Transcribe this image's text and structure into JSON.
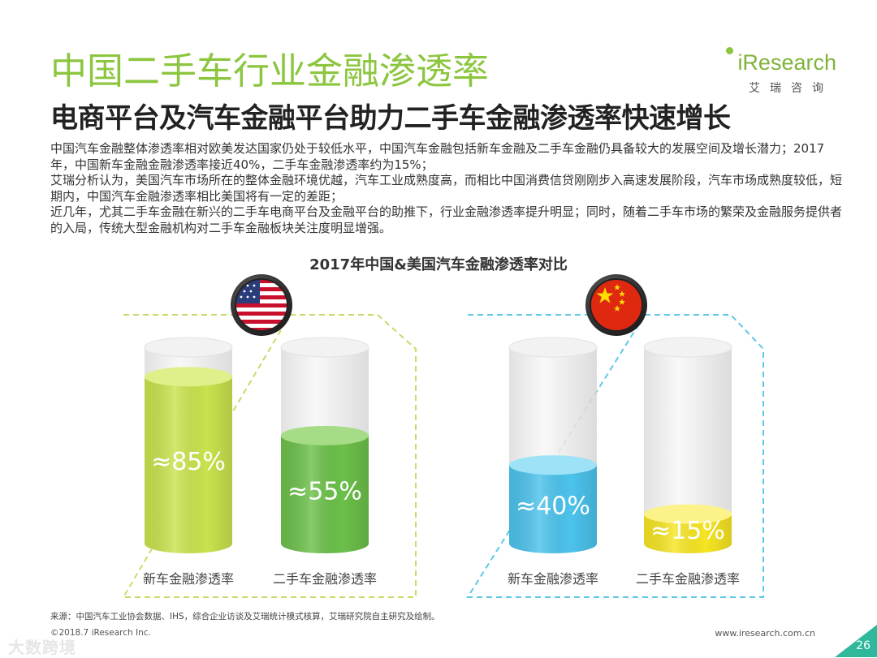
{
  "header": {
    "title": "中国二手车行业金融渗透率",
    "subtitle": "电商平台及汽车金融平台助力二手车金融渗透率快速增长"
  },
  "logo": {
    "name": "iResearch",
    "tagline": "艾瑞咨询"
  },
  "intro": [
    "中国汽车金融整体渗透率相对欧美发达国家仍处于较低水平，中国汽车金融包括新车金融及二手车金融仍具备较大的发展空间及增长潜力；2017年，中国新车金融金融渗透率接近40%，二手车金融渗透率约为15%；",
    "艾瑞分析认为，美国汽车市场所在的整体金融环境优越，汽车工业成熟度高，而相比中国消费信贷刚刚步入高速发展阶段，汽车市场成熟度较低，短期内，中国汽车金融渗透率相比美国将有一定的差距；",
    "近几年，尤其二手车金融在新兴的二手车电商平台及金融平台的助推下，行业金融渗透率提升明显；同时，随着二手车市场的繁荣及金融服务提供者的入局，传统大型金融机构对二手车金融板块关注度明显增强。"
  ],
  "chart_data": {
    "type": "bar",
    "title": "2017年中国&美国汽车金融渗透率对比",
    "unit": "%",
    "groups": [
      {
        "country_icon": "usa-flag-icon",
        "border_color": "#c5dc6a",
        "bars": [
          {
            "label": "新车金融渗透率",
            "value": 85,
            "display": "≈85%",
            "color": "#c9e34e",
            "top_color": "#dff08a"
          },
          {
            "label": "二手车金融渗透率",
            "value": 55,
            "display": "≈55%",
            "color": "#6cc04a",
            "top_color": "#a6dc86"
          }
        ]
      },
      {
        "country_icon": "china-flag-icon",
        "border_color": "#5ec9e5",
        "bars": [
          {
            "label": "新车金融渗透率",
            "value": 40,
            "display": "≈40%",
            "color": "#4cc3ec",
            "top_color": "#9ee2f7"
          },
          {
            "label": "二手车金融渗透率",
            "value": 15,
            "display": "≈15%",
            "color": "#f6e523",
            "top_color": "#fbf389"
          }
        ]
      }
    ]
  },
  "footer": {
    "source": "来源：中国汽车工业协会数据、IHS，综合企业访谈及艾瑞统计模式核算，艾瑞研究院自主研究及绘制。",
    "copyright": "©2018.7 iResearch Inc.",
    "website": "www.iresearch.com.cn",
    "page_number": "26",
    "watermark": "大数跨境"
  },
  "colors": {
    "accent": "#8cc63f",
    "page_corner": "#2fb89c"
  }
}
